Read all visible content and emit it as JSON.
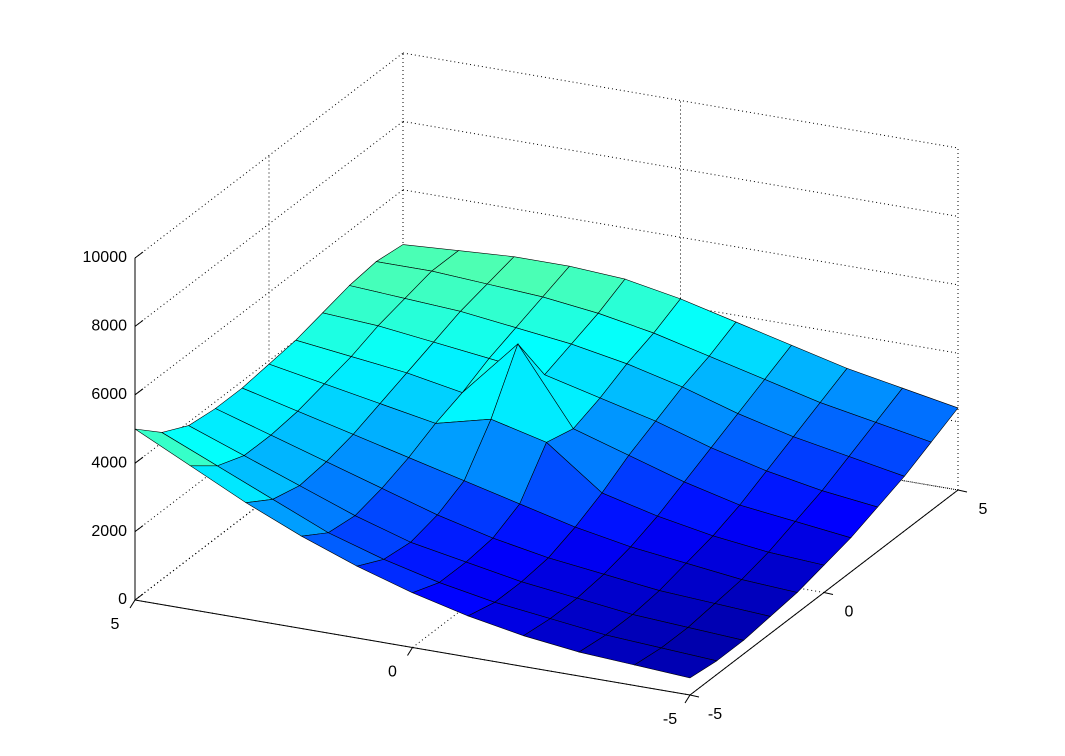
{
  "chart_data": {
    "type": "surface3d",
    "colormap": "jet",
    "grid": true,
    "x": [
      -5,
      -4,
      -3,
      -2,
      -1,
      0,
      1,
      2,
      3,
      4,
      5
    ],
    "y": [
      -5,
      -4,
      -3,
      -2,
      -1,
      0,
      1,
      2,
      3,
      4,
      5
    ],
    "z": [
      [
        500,
        400,
        400,
        500,
        600,
        800,
        1000,
        1300,
        1600,
        2000,
        2400
      ],
      [
        600,
        500,
        500,
        600,
        700,
        900,
        1200,
        1500,
        1900,
        2300,
        2700
      ],
      [
        700,
        600,
        600,
        700,
        900,
        1100,
        1400,
        1800,
        2200,
        2600,
        3000
      ],
      [
        900,
        800,
        800,
        900,
        1100,
        1400,
        1800,
        2200,
        2600,
        3000,
        3400
      ],
      [
        1200,
        1000,
        1000,
        1100,
        1400,
        1800,
        2300,
        2700,
        3100,
        3400,
        3800
      ],
      [
        1600,
        1300,
        1300,
        1400,
        1800,
        3000,
        2800,
        3100,
        3500,
        3800,
        4200
      ],
      [
        2100,
        1700,
        1600,
        1800,
        2200,
        3400,
        5000,
        3500,
        3800,
        4100,
        4500
      ],
      [
        2700,
        2200,
        2100,
        2300,
        2600,
        3000,
        3300,
        3700,
        4000,
        4300,
        4600
      ],
      [
        3400,
        2900,
        2700,
        2800,
        3000,
        3300,
        3600,
        3900,
        4200,
        4400,
        4600
      ],
      [
        4200,
        3600,
        3300,
        3300,
        3400,
        3600,
        3800,
        4100,
        4300,
        4500,
        4500
      ],
      [
        5000,
        4300,
        3900,
        3800,
        3800,
        3900,
        4000,
        4200,
        4400,
        4500,
        4400
      ]
    ],
    "xlim": [
      -5,
      5
    ],
    "xticks": [
      -5,
      0,
      5
    ],
    "ylim": [
      -5,
      5
    ],
    "yticks": [
      -5,
      0,
      5
    ],
    "zlim": [
      0,
      10000
    ],
    "zticks": [
      0,
      2000,
      4000,
      6000,
      8000,
      10000
    ]
  }
}
